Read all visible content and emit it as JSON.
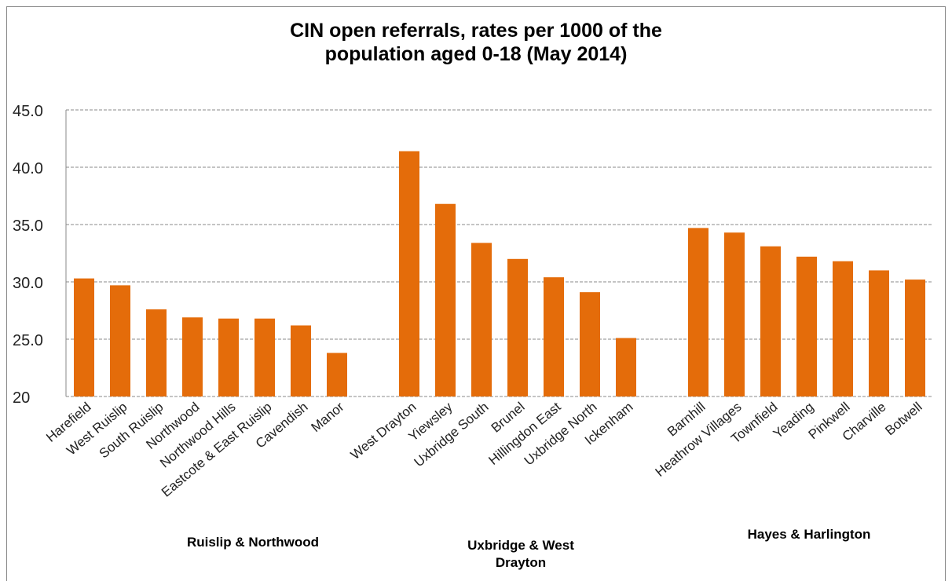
{
  "chart_data": {
    "type": "bar",
    "title": "CIN open referrals, rates per 1000 of the population aged 0-18 (May 2014)",
    "categories": [
      "Harefield",
      "West Ruislip",
      "South Ruislip",
      "Northwood",
      "Northwood Hills",
      "Eastcote & East Ruislip",
      "Cavendish",
      "Manor",
      null,
      "West Drayton",
      "Yiewsley",
      "Uxbridge South",
      "Brunel",
      "Hillingdon East",
      "Uxbridge North",
      "Ickenham",
      null,
      "Barnhill",
      "Heathrow Villages",
      "Townfield",
      "Yeading",
      "Pinkwell",
      "Charville",
      "Botwell"
    ],
    "values": [
      30.3,
      29.7,
      27.6,
      26.9,
      26.8,
      26.8,
      26.2,
      23.8,
      null,
      41.4,
      36.8,
      33.4,
      32.0,
      30.4,
      29.1,
      25.1,
      null,
      34.7,
      34.3,
      33.1,
      32.2,
      31.8,
      31.0,
      30.2
    ],
    "color": "#e46c0a",
    "groups": [
      "Ruislip & Northwood",
      "Uxbridge & West Drayton",
      "Hayes & Harlington"
    ],
    "ylim": [
      20,
      45
    ],
    "yticks": [
      {
        "value": 20,
        "label": "20"
      },
      {
        "value": 25,
        "label": "25.0"
      },
      {
        "value": 30,
        "label": "30.0"
      },
      {
        "value": 35,
        "label": "35.0"
      },
      {
        "value": 40,
        "label": "40.0"
      },
      {
        "value": 45,
        "label": "45.0"
      }
    ],
    "grid": true
  }
}
